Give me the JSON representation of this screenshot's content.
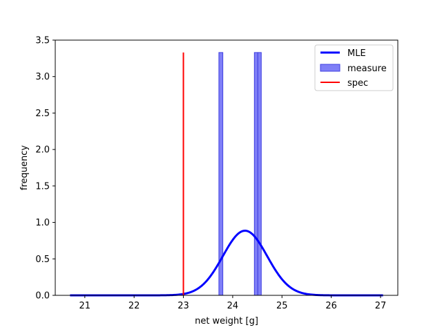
{
  "chart_data": {
    "type": "histogram+line",
    "xlabel": "net weight [g]",
    "ylabel": "frequency",
    "xlim": [
      20.4,
      27.35
    ],
    "ylim": [
      0,
      3.5
    ],
    "xticks": [
      21,
      22,
      23,
      24,
      25,
      26,
      27
    ],
    "yticks": [
      0.0,
      0.5,
      1.0,
      1.5,
      2.0,
      2.5,
      3.0,
      3.5
    ],
    "grid": false,
    "legend_position": "top-right",
    "histogram": {
      "name": "measure",
      "color": "#7f7ff7",
      "edge_color": "#3f3fe0",
      "bins": [
        {
          "x0": 23.72,
          "x1": 23.8,
          "value": 3.33
        },
        {
          "x0": 24.44,
          "x1": 24.51,
          "value": 3.33
        },
        {
          "x0": 24.51,
          "x1": 24.58,
          "value": 3.33
        }
      ]
    },
    "mle": {
      "name": "MLE",
      "color": "#0000ff",
      "mean": 24.25,
      "std": 0.45,
      "x_range": [
        20.7,
        27.05
      ]
    },
    "spec": {
      "name": "spec",
      "color": "#ff0000",
      "x": 23.0,
      "y_top": 3.33
    }
  }
}
